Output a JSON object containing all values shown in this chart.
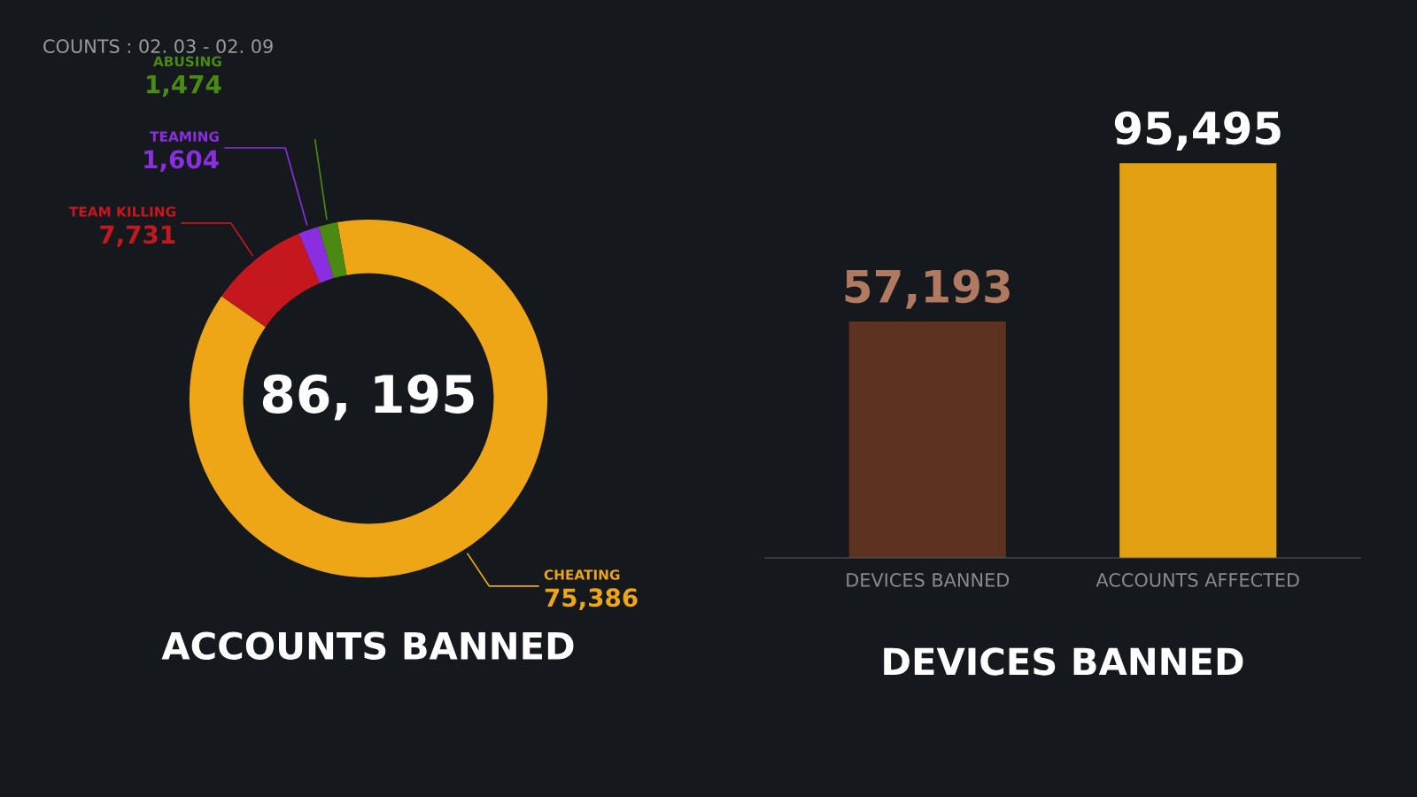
{
  "chart_data": [
    {
      "type": "donut",
      "title": "ACCOUNTS BANNED",
      "categories": [
        "CHEATING",
        "TEAM KILLING",
        "TEAMING",
        "ABUSING"
      ],
      "values": [
        75386,
        7731,
        1604,
        1474
      ],
      "value_labels": [
        "75,386",
        "7,731",
        "1,604",
        "1,474"
      ],
      "colors": [
        "#eea616",
        "#c4181e",
        "#8a2ee0",
        "#4a8a12"
      ],
      "legend": false,
      "annotations": [
        "86, 195",
        "COUNTS : 02. 03 - 02. 09"
      ]
    },
    {
      "type": "bar",
      "title": "DEVICES BANNED",
      "categories": [
        "DEVICES BANNED",
        "ACCOUNTS AFFECTED"
      ],
      "values": [
        57193,
        95495
      ],
      "value_labels": [
        "57,193",
        "95,495"
      ],
      "colors": [
        "#5e3220",
        "#e2a012"
      ],
      "tick_labels": "x",
      "grid": false,
      "legend": false
    }
  ]
}
